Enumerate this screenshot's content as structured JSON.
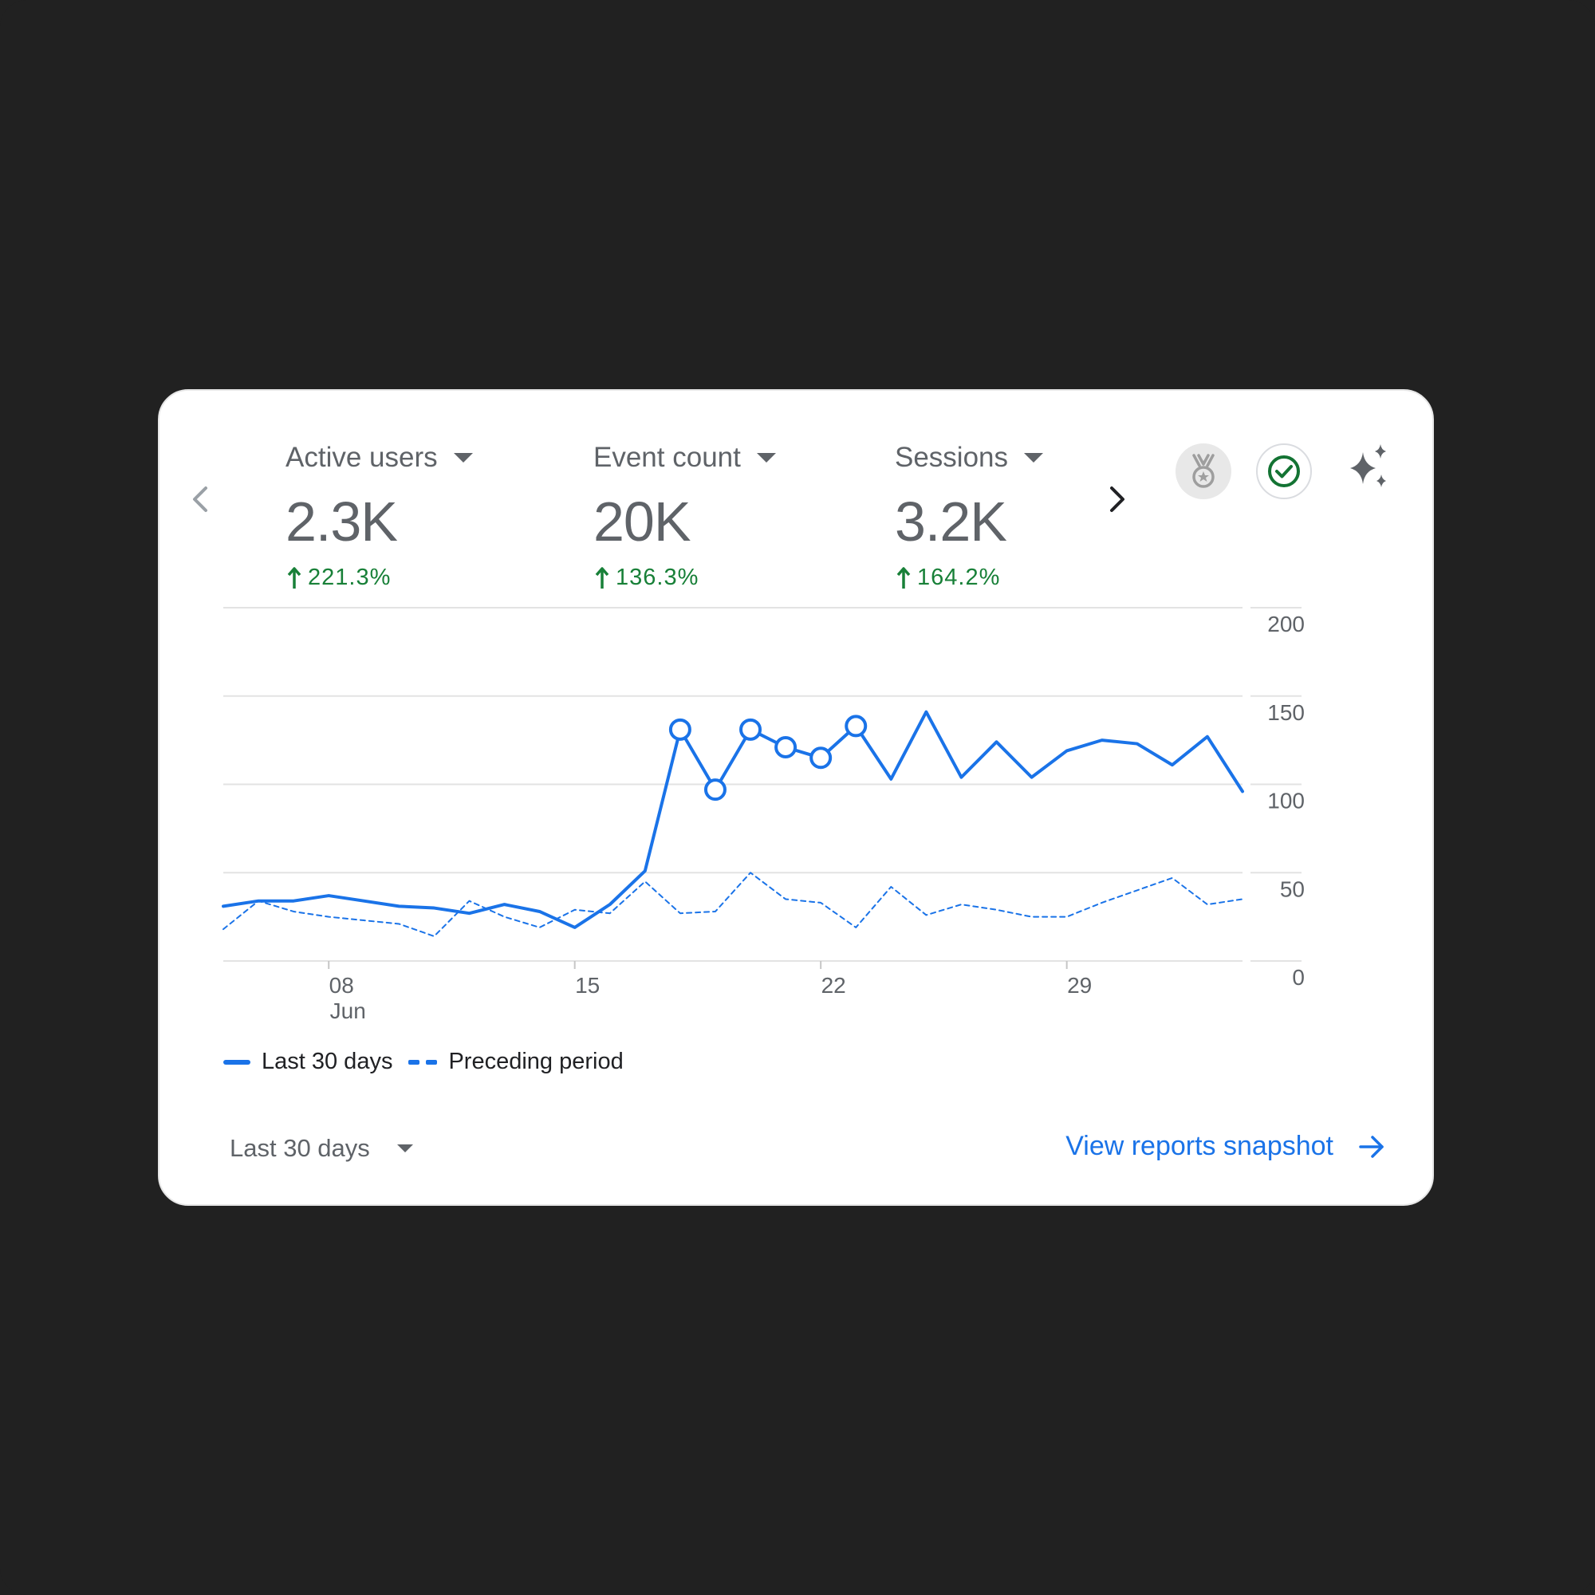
{
  "metrics": [
    {
      "label": "Active users",
      "value": "2.3K",
      "change": "221.3%"
    },
    {
      "label": "Event count",
      "value": "20K",
      "change": "136.3%"
    },
    {
      "label": "Sessions",
      "value": "3.2K",
      "change": "164.2%"
    }
  ],
  "icons": {
    "prev": "chevron-left-icon",
    "next": "chevron-right-icon",
    "award": "medal-icon",
    "check": "check-circle-icon",
    "insights": "sparkle-icon"
  },
  "colors": {
    "series": "#1a73e8",
    "positive_change": "#188038",
    "text_secondary": "#5f6368",
    "link": "#1a73e8"
  },
  "chart_data": {
    "type": "line",
    "ylim": [
      0,
      200
    ],
    "y_ticks": [
      "200",
      "150",
      "100",
      "50",
      "0"
    ],
    "x_ticks": [
      {
        "day": 8,
        "label": "08",
        "sublabel": "Jun"
      },
      {
        "day": 15,
        "label": "15"
      },
      {
        "day": 22,
        "label": "22"
      },
      {
        "day": 29,
        "label": "29"
      }
    ],
    "x": [
      5,
      6,
      7,
      8,
      9,
      10,
      11,
      12,
      13,
      14,
      15,
      16,
      17,
      18,
      19,
      20,
      21,
      22,
      23,
      24,
      25,
      26,
      27,
      28,
      29,
      30,
      31,
      32,
      33,
      34
    ],
    "series": [
      {
        "name": "Last 30 days",
        "style": "solid",
        "values": [
          31,
          34,
          34,
          37,
          34,
          31,
          30,
          27,
          32,
          28,
          19,
          32,
          51,
          131,
          97,
          131,
          121,
          115,
          133,
          103,
          141,
          104,
          124,
          104,
          119,
          125,
          123,
          111,
          127,
          96
        ],
        "highlighted_days": [
          18,
          19,
          20,
          21,
          22,
          23
        ]
      },
      {
        "name": "Preceding period",
        "style": "dashed",
        "values": [
          18,
          34,
          28,
          25,
          23,
          21,
          14,
          34,
          25,
          19,
          29,
          27,
          45,
          27,
          28,
          50,
          35,
          33,
          19,
          42,
          26,
          32,
          29,
          25,
          25,
          33,
          40,
          47,
          32,
          35
        ]
      }
    ],
    "legend": [
      "Last 30 days",
      "Preceding period"
    ],
    "grid": true
  },
  "footer": {
    "range_label": "Last 30 days",
    "link_label": "View reports snapshot"
  }
}
